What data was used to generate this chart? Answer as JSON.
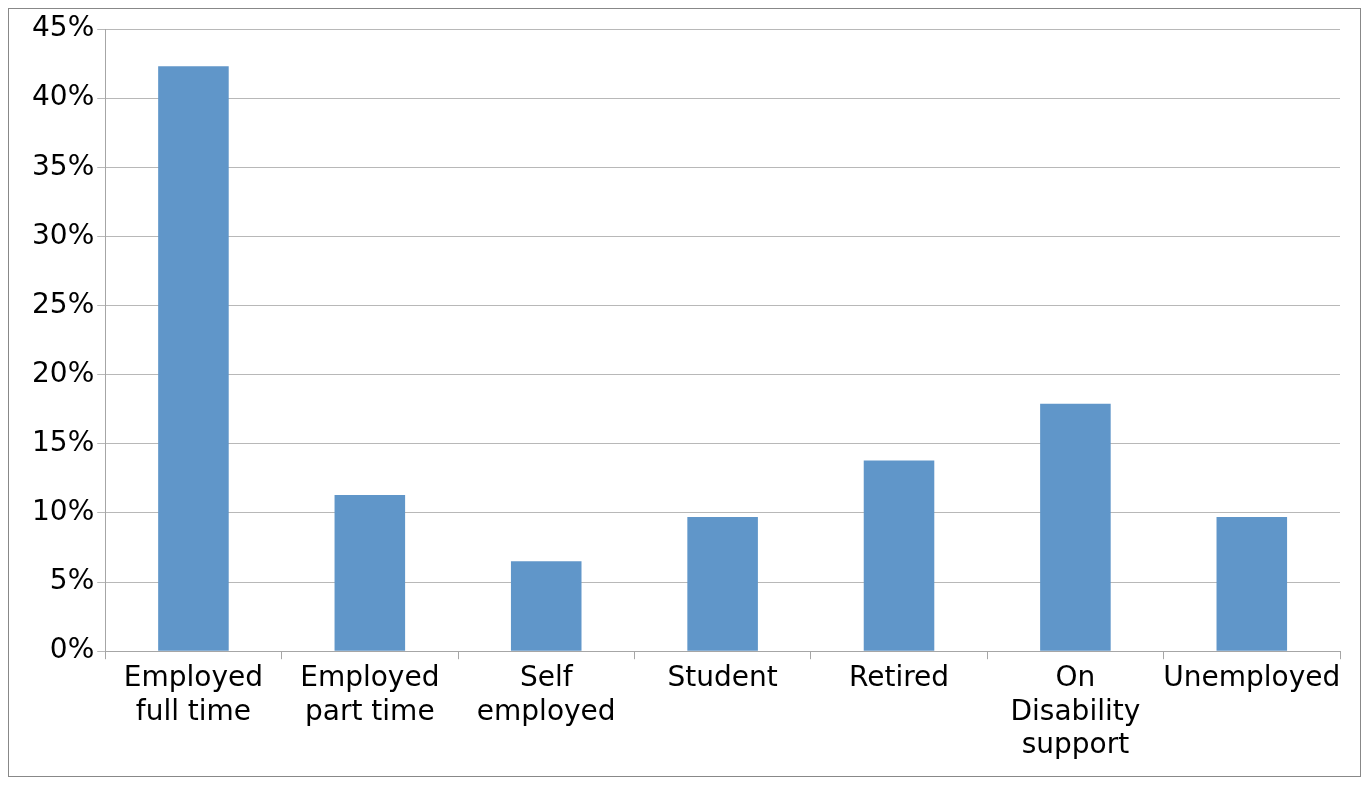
{
  "chart_data": {
    "type": "bar",
    "categories": [
      "Employed full time",
      "Employed part time",
      "Self employed",
      "Student",
      "Retired",
      "On Disability support",
      "Unemployed"
    ],
    "values": [
      42.3,
      11.3,
      6.5,
      9.7,
      13.8,
      17.9,
      9.7
    ],
    "color": "#6096c9",
    "ylim": [
      0,
      45
    ],
    "yticks": [
      {
        "value": 0,
        "label": "0%"
      },
      {
        "value": 5,
        "label": "5%"
      },
      {
        "value": 10,
        "label": "10%"
      },
      {
        "value": 15,
        "label": "15%"
      },
      {
        "value": 20,
        "label": "20%"
      },
      {
        "value": 25,
        "label": "25%"
      },
      {
        "value": 30,
        "label": "30%"
      },
      {
        "value": 35,
        "label": "35%"
      },
      {
        "value": 40,
        "label": "40%"
      },
      {
        "value": 45,
        "label": "45%"
      }
    ],
    "grid": "y",
    "legend": false
  }
}
